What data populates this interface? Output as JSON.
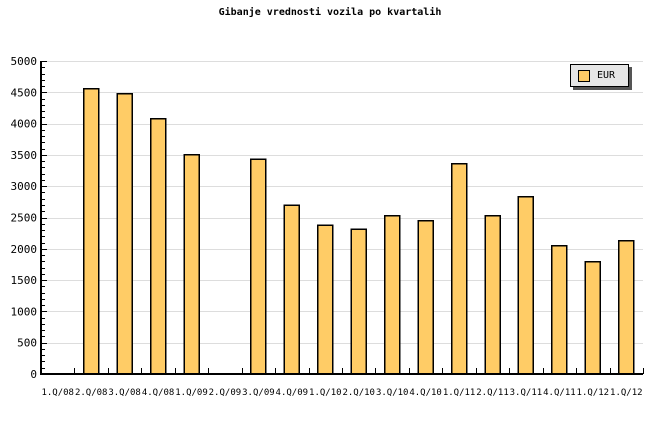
{
  "chart": {
    "title": "Gibanje vrednosti vozila po kvartalih",
    "legend": {
      "label": "EUR",
      "swatch_color": "#FFCC66"
    }
  },
  "chart_data": {
    "type": "bar",
    "title": "Gibanje vrednosti vozila po kvartalih",
    "categories": [
      "1.Q/08",
      "2.Q/08",
      "3.Q/08",
      "4.Q/08",
      "1.Q/09",
      "2.Q/09",
      "3.Q/09",
      "4.Q/09",
      "1.Q/10",
      "2.Q/10",
      "3.Q/10",
      "4.Q/10",
      "1.Q/11",
      "2.Q/11",
      "3.Q/11",
      "4.Q/11",
      "1.Q/12",
      "1.Q/12"
    ],
    "series": [
      {
        "name": "EUR",
        "values": [
          null,
          4560,
          4480,
          4080,
          3500,
          null,
          3430,
          2700,
          2380,
          2310,
          2530,
          2450,
          3360,
          2530,
          2830,
          2050,
          1790,
          2130
        ]
      }
    ],
    "ylabel": "",
    "xlabel": "",
    "ylim": [
      0,
      5000
    ],
    "ytick_step": 500,
    "y_minor_step": 100,
    "y_tick_labels": [
      "0",
      "500",
      "1000",
      "1500",
      "2000",
      "2500",
      "3000",
      "3500",
      "4000",
      "4500",
      "5000"
    ],
    "grid": true,
    "legend_position": "top-right",
    "colors": {
      "bar_fill": "#FFCC66",
      "bar_border": "#000000",
      "grid": "#DDDDDD",
      "axis": "#000000",
      "text": "#000000",
      "legend_bg": "#E6E6E6",
      "legend_border": "#000000",
      "legend_shadow": "#555555"
    }
  }
}
